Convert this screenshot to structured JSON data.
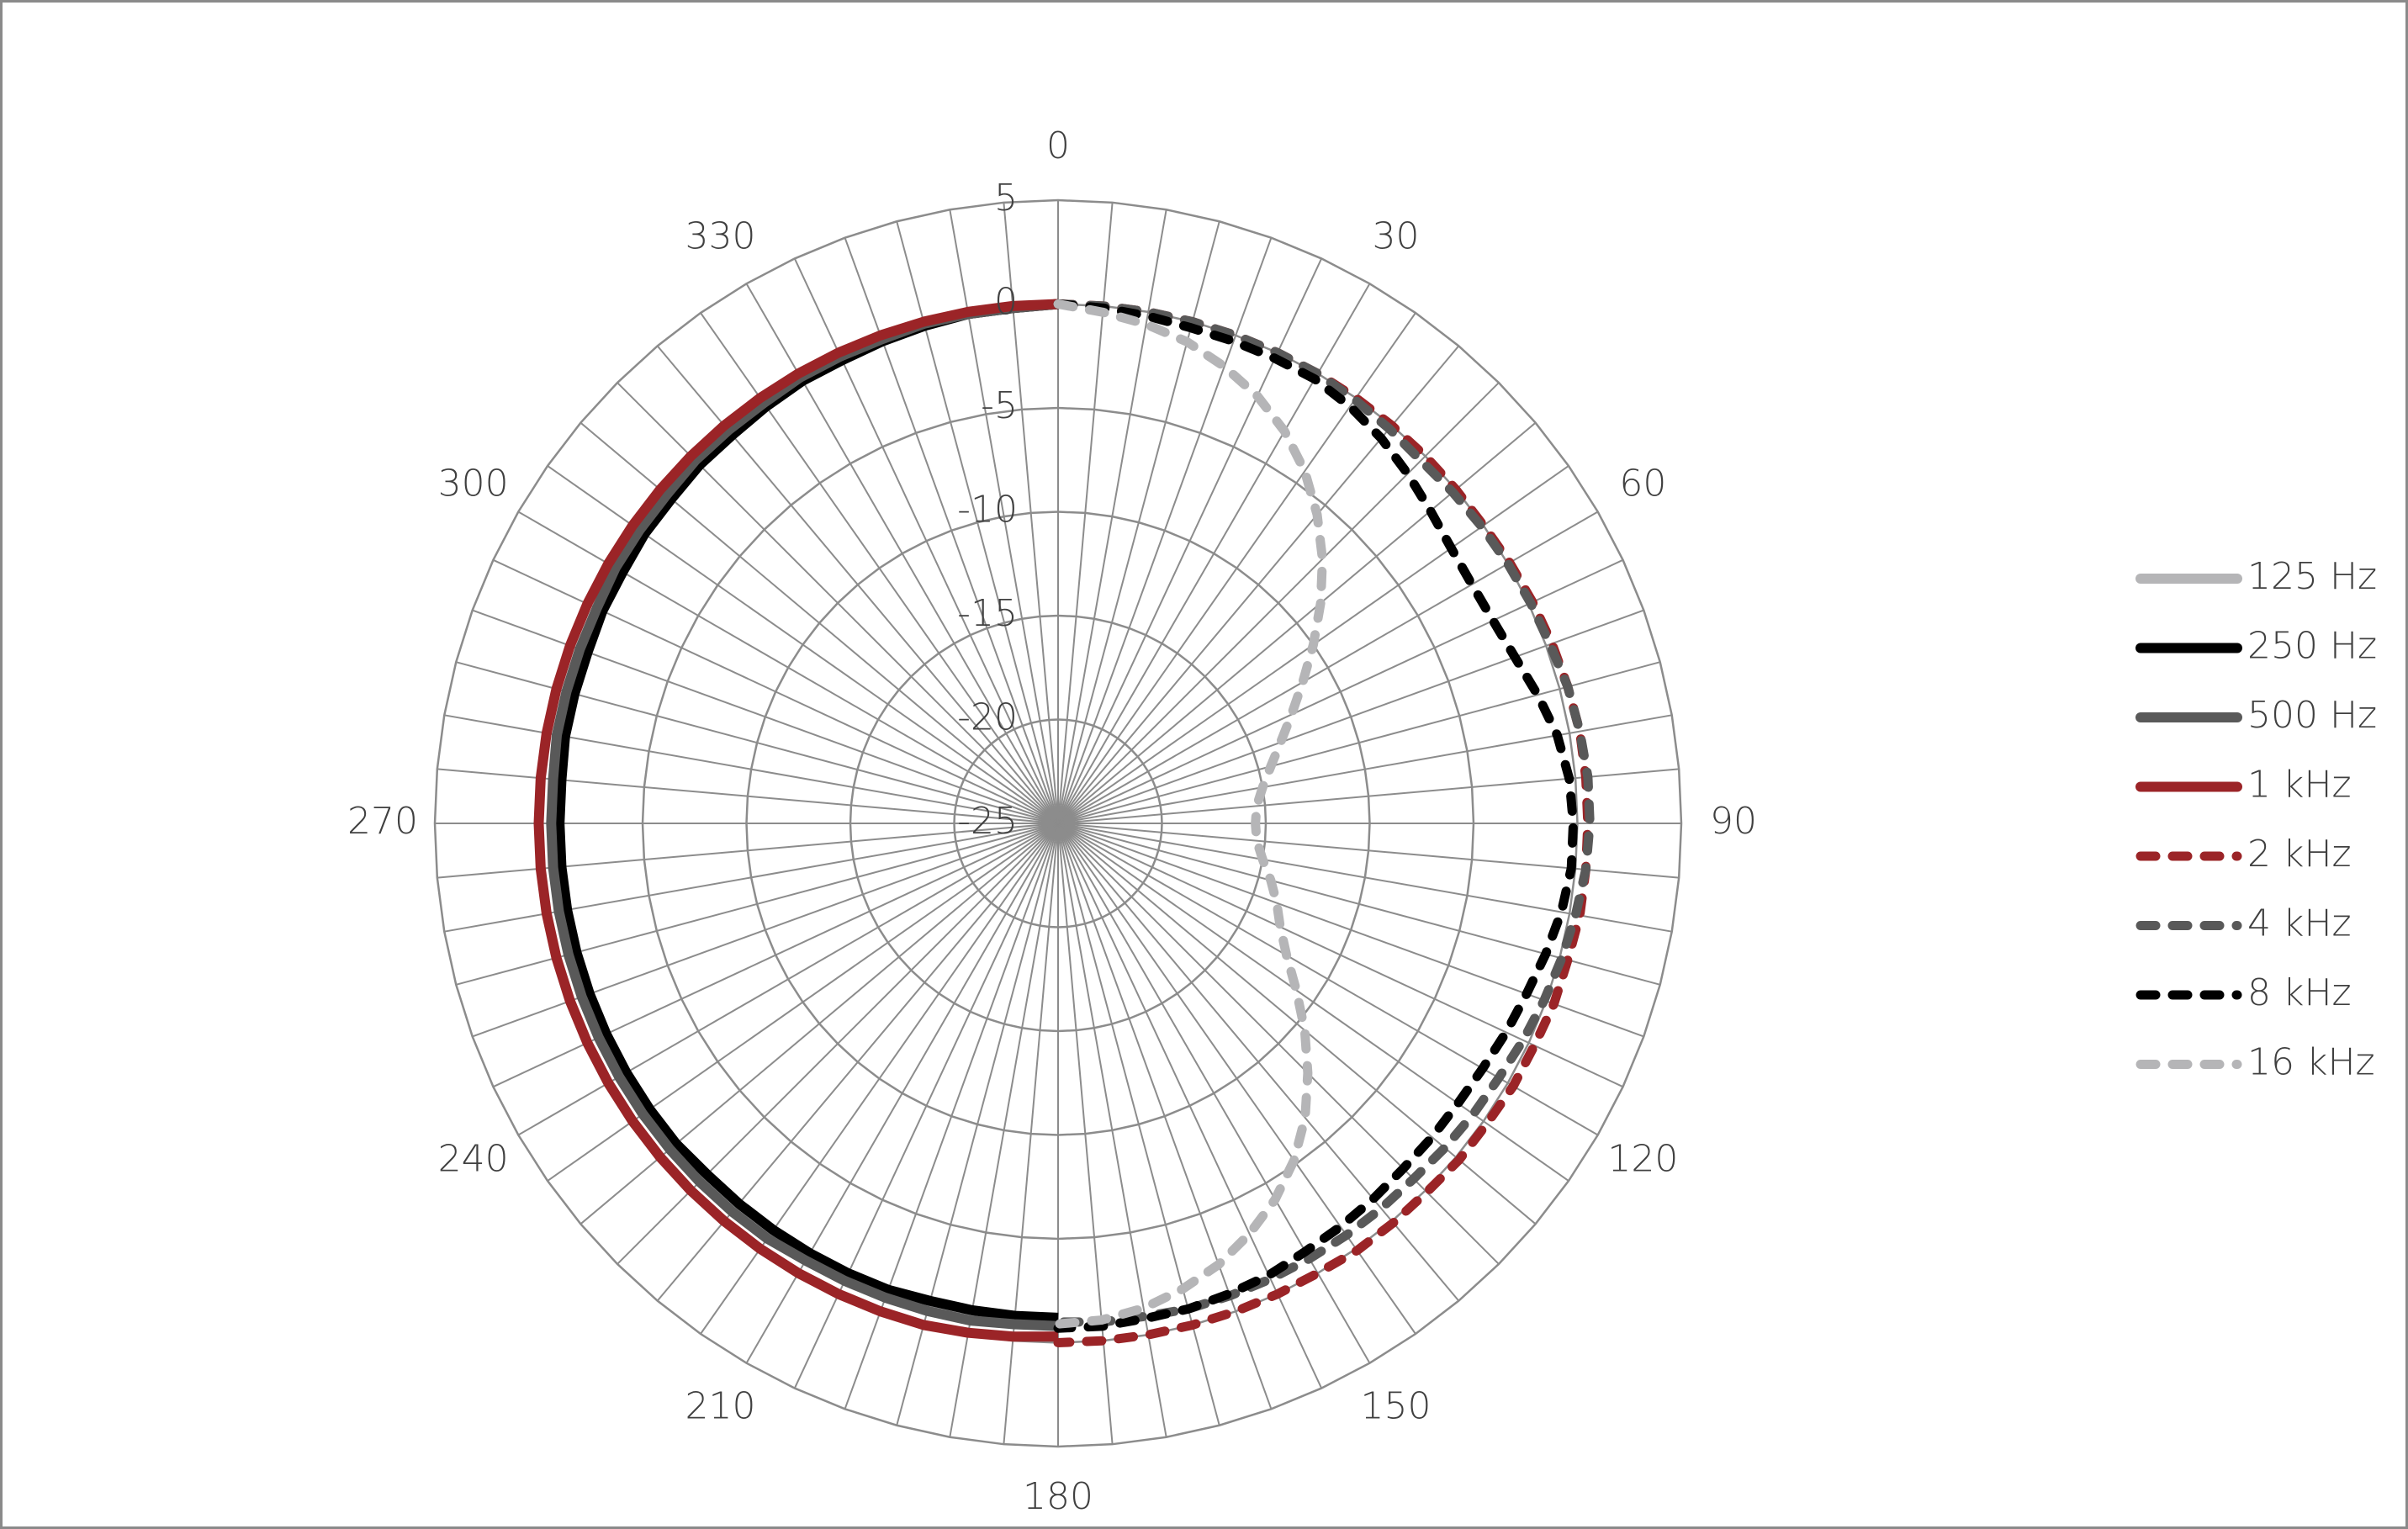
{
  "chart_data": {
    "type": "radar",
    "categories": [
      0,
      null,
      null,
      null,
      null,
      null,
      30,
      null,
      null,
      null,
      null,
      null,
      60,
      null,
      null,
      null,
      null,
      null,
      90,
      null,
      null,
      null,
      null,
      null,
      120,
      null,
      null,
      null,
      null,
      null,
      150,
      null,
      null,
      null,
      null,
      null,
      180,
      null,
      null,
      null,
      null,
      null,
      210,
      null,
      null,
      null,
      null,
      null,
      240,
      null,
      null,
      null,
      null,
      null,
      270,
      null,
      null,
      null,
      null,
      null,
      300,
      null,
      null,
      null,
      null,
      null,
      330,
      null,
      null,
      null,
      null,
      null
    ],
    "ylim": [
      -25,
      5
    ],
    "yticks": [
      -25,
      -20,
      -15,
      -10,
      -5,
      0,
      5
    ],
    "grid": true,
    "legend": "right",
    "series": [
      {
        "name": "125 Hz",
        "color": "#b5b5b7",
        "dashed": false,
        "values": [
          0,
          null,
          null,
          null,
          null,
          null,
          null,
          null,
          null,
          null,
          null,
          null,
          null,
          null,
          null,
          null,
          null,
          null,
          null,
          null,
          null,
          null,
          null,
          null,
          null,
          null,
          null,
          null,
          null,
          null,
          null,
          null,
          null,
          null,
          null,
          null,
          -0.9,
          -0.9,
          -0.8,
          -0.8,
          -0.8,
          -0.8,
          -0.7,
          -0.7,
          -0.7,
          -0.7,
          -0.7,
          -0.7,
          -0.7,
          -0.7,
          -0.7,
          -0.7,
          -0.7,
          -0.7,
          -0.7,
          -0.7,
          -0.6,
          -0.6,
          -0.6,
          -0.5,
          -0.5,
          -0.5,
          -0.4,
          -0.4,
          -0.3,
          -0.3,
          -0.3,
          -0.2,
          -0.2,
          -0.1,
          -0.1,
          -0.1
        ]
      },
      {
        "name": "250 Hz",
        "color": "#000000",
        "dashed": false,
        "values": [
          0,
          null,
          null,
          null,
          null,
          null,
          null,
          null,
          null,
          null,
          null,
          null,
          null,
          null,
          null,
          null,
          null,
          null,
          null,
          null,
          null,
          null,
          null,
          null,
          null,
          null,
          null,
          null,
          null,
          null,
          null,
          null,
          null,
          null,
          null,
          null,
          -1.2,
          -1.2,
          -1.2,
          -1.2,
          -1.1,
          -1.1,
          -1.1,
          -1.1,
          -1.1,
          -1.1,
          -1.0,
          -1.0,
          -1.0,
          -1.0,
          -1.0,
          -1.0,
          -1.0,
          -1.0,
          -1.0,
          -1.0,
          -0.9,
          -0.9,
          -0.9,
          -0.8,
          -0.8,
          -0.7,
          -0.7,
          -0.6,
          -0.6,
          -0.5,
          -0.4,
          -0.4,
          -0.3,
          -0.2,
          -0.1,
          -0.1
        ]
      },
      {
        "name": "500 Hz",
        "color": "#595959",
        "dashed": false,
        "values": [
          0,
          null,
          null,
          null,
          null,
          null,
          null,
          null,
          null,
          null,
          null,
          null,
          null,
          null,
          null,
          null,
          null,
          null,
          null,
          null,
          null,
          null,
          null,
          null,
          null,
          null,
          null,
          null,
          null,
          null,
          null,
          null,
          null,
          null,
          null,
          null,
          -0.8,
          -0.8,
          -0.7,
          -0.7,
          -0.7,
          -0.7,
          -0.7,
          -0.6,
          -0.6,
          -0.6,
          -0.6,
          -0.6,
          -0.6,
          -0.6,
          -0.6,
          -0.6,
          -0.6,
          -0.6,
          -0.6,
          -0.6,
          -0.5,
          -0.5,
          -0.5,
          -0.5,
          -0.4,
          -0.4,
          -0.4,
          -0.3,
          -0.3,
          -0.3,
          -0.2,
          -0.2,
          -0.2,
          -0.1,
          -0.1,
          -0.1
        ]
      },
      {
        "name": "1 kHz",
        "color": "#9b2427",
        "dashed": false,
        "values": [
          0,
          null,
          null,
          null,
          null,
          null,
          null,
          null,
          null,
          null,
          null,
          null,
          null,
          null,
          null,
          null,
          null,
          null,
          null,
          null,
          null,
          null,
          null,
          null,
          null,
          null,
          null,
          null,
          null,
          null,
          null,
          null,
          null,
          null,
          null,
          null,
          -0.3,
          -0.2,
          -0.1,
          0,
          0,
          0,
          0,
          0,
          0,
          0,
          0,
          0,
          0,
          0,
          0,
          0,
          0,
          0,
          0,
          0,
          0,
          0,
          0,
          0,
          0,
          0,
          0,
          0,
          0,
          0,
          0,
          0,
          0,
          0,
          0,
          0
        ]
      },
      {
        "name": "2 kHz",
        "color": "#9b2427",
        "dashed": true,
        "values": [
          0,
          0,
          0,
          0,
          0,
          0,
          0,
          0,
          0,
          0,
          0,
          0,
          0.1,
          0.2,
          0.3,
          0.4,
          0.5,
          0.5,
          0.5,
          0.5,
          0.5,
          0.4,
          0.4,
          0.3,
          0.3,
          0.2,
          0.2,
          0.1,
          0.1,
          0.1,
          0,
          0,
          0,
          0,
          0,
          0,
          0,
          null,
          null,
          null,
          null,
          null,
          null,
          null,
          null,
          null,
          null,
          null,
          null,
          null,
          null,
          null,
          null,
          null,
          null,
          null,
          null,
          null,
          null,
          null,
          null,
          null,
          null,
          null,
          null,
          null,
          null,
          null,
          null,
          null,
          null,
          null
        ]
      },
      {
        "name": "4 kHz",
        "color": "#595959",
        "dashed": true,
        "values": [
          0,
          0,
          0,
          0,
          0,
          0,
          0,
          -0.1,
          -0.2,
          -0.3,
          -0.2,
          -0.1,
          0,
          0.1,
          0.2,
          0.4,
          0.5,
          0.6,
          0.6,
          0.5,
          0.3,
          0.1,
          -0.1,
          -0.3,
          -0.5,
          -0.6,
          -0.7,
          -0.8,
          -0.8,
          -0.8,
          -0.8,
          -0.8,
          -0.8,
          -0.8,
          -0.9,
          -0.9,
          -1.0,
          null,
          null,
          null,
          null,
          null,
          null,
          null,
          null,
          null,
          null,
          null,
          null,
          null,
          null,
          null,
          null,
          null,
          null,
          null,
          null,
          null,
          null,
          null,
          null,
          null,
          null,
          null,
          null,
          null,
          null,
          null,
          null,
          null,
          null,
          null
        ]
      },
      {
        "name": "8 kHz",
        "color": "#000000",
        "dashed": true,
        "values": [
          0,
          -0.1,
          -0.2,
          -0.3,
          -0.3,
          -0.3,
          -0.3,
          -0.5,
          -0.8,
          -1.2,
          -1.6,
          -1.9,
          -2.0,
          -1.9,
          -1.6,
          -1.1,
          -0.6,
          -0.3,
          -0.2,
          -0.2,
          -0.4,
          -0.7,
          -1.0,
          -1.2,
          -1.4,
          -1.5,
          -1.5,
          -1.5,
          -1.4,
          -1.3,
          -1.2,
          -1.0,
          -0.9,
          -0.8,
          -0.8,
          -0.7,
          -0.7,
          null,
          null,
          null,
          null,
          null,
          null,
          null,
          null,
          null,
          null,
          null,
          null,
          null,
          null,
          null,
          null,
          null,
          null,
          null,
          null,
          null,
          null,
          null,
          null,
          null,
          null,
          null,
          null,
          null,
          null,
          null,
          null,
          null,
          null,
          null
        ]
      },
      {
        "name": "16 kHz",
        "color": "#b5b5b7",
        "dashed": true,
        "values": [
          0,
          -0.3,
          -0.6,
          -1.0,
          -1.6,
          -2.3,
          -3.2,
          -4.3,
          -5.6,
          -7.0,
          -8.5,
          -10.0,
          -11.4,
          -12.6,
          -13.6,
          -14.4,
          -15.0,
          -15.4,
          -15.5,
          -15.4,
          -15.0,
          -14.4,
          -13.8,
          -13.2,
          -12.3,
          -11.0,
          -9.5,
          -8.0,
          -6.5,
          -5.2,
          -4.1,
          -3.2,
          -2.4,
          -1.8,
          -1.3,
          -1.0,
          -0.9,
          null,
          null,
          null,
          null,
          null,
          null,
          null,
          null,
          null,
          null,
          null,
          null,
          null,
          null,
          null,
          null,
          null,
          null,
          null,
          null,
          null,
          null,
          null,
          null,
          null,
          null,
          null,
          null,
          null,
          null,
          null,
          null,
          null,
          null,
          null
        ]
      }
    ]
  }
}
